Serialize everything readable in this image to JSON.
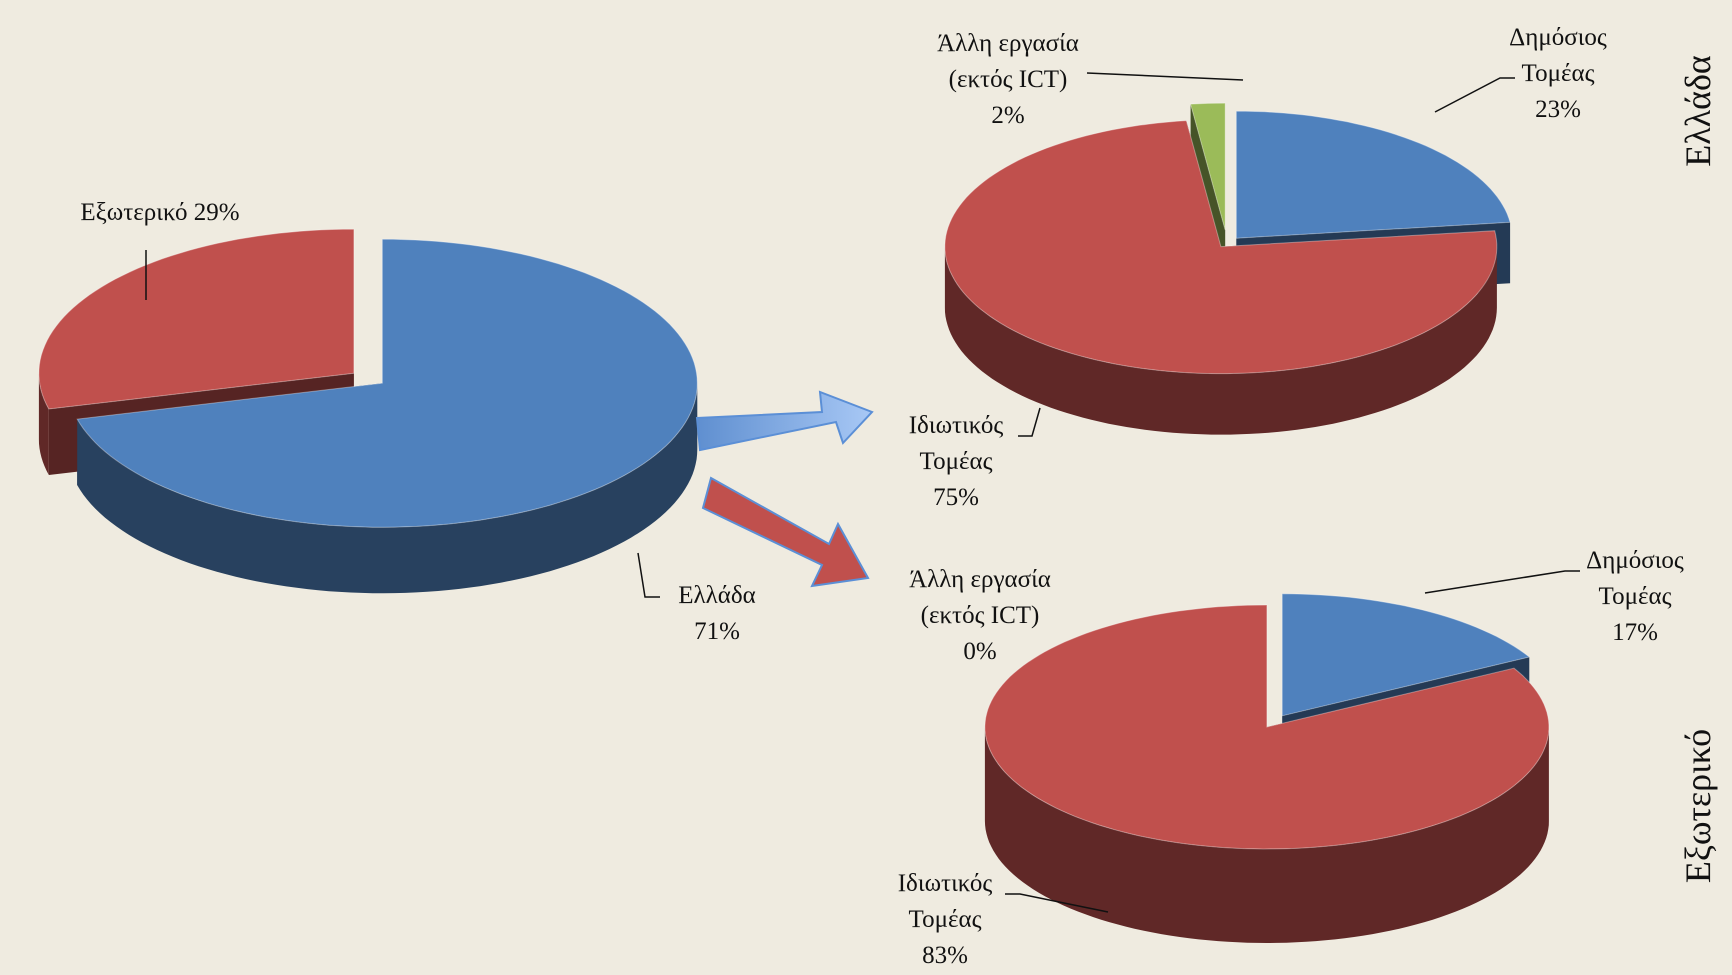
{
  "chart_data": [
    {
      "type": "pie",
      "categories": [
        "Ελλάδα",
        "Εξωτερικό"
      ],
      "values": [
        71,
        29
      ],
      "value_labels": [
        "71%",
        "29%"
      ],
      "colors": [
        "#4f81bd",
        "#c0504d"
      ]
    },
    {
      "type": "pie",
      "title": "Ελλάδα",
      "categories": [
        "Δημόσιος Τομέας",
        "Ιδιωτικός Τομέας",
        "Άλλη εργασία (εκτός ICT)"
      ],
      "values": [
        23,
        75,
        2
      ],
      "value_labels": [
        "23%",
        "75%",
        "2%"
      ],
      "colors": [
        "#4f81bd",
        "#c0504d",
        "#9bbb59"
      ]
    },
    {
      "type": "pie",
      "title": "Εξωτερικό",
      "categories": [
        "Δημόσιος Τομέας",
        "Ιδιωτικός Τομέας",
        "Άλλη εργασία (εκτός ICT)"
      ],
      "values": [
        17,
        83,
        0
      ],
      "value_labels": [
        "17%",
        "83%",
        "0%"
      ],
      "colors": [
        "#4f81bd",
        "#c0504d",
        "#9bbb59"
      ]
    }
  ]
}
